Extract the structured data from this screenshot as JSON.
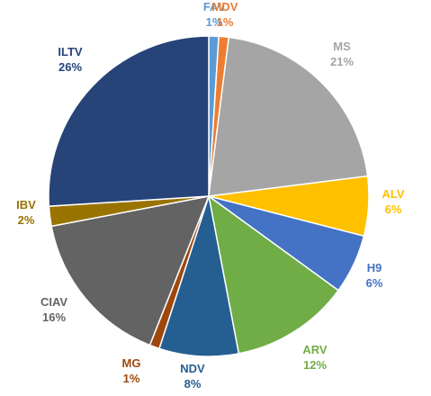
{
  "chart_data": {
    "type": "pie",
    "title": "",
    "slices": [
      {
        "label": "FAV",
        "value": 1,
        "value_label": "1%",
        "color": "#5B9BD5"
      },
      {
        "label": "MDV",
        "value": 1,
        "value_label": "1%",
        "color": "#ED7D31"
      },
      {
        "label": "MS",
        "value": 21,
        "value_label": "21%",
        "color": "#A5A5A5"
      },
      {
        "label": "ALV",
        "value": 6,
        "value_label": "6%",
        "color": "#FFC000"
      },
      {
        "label": "H9",
        "value": 6,
        "value_label": "6%",
        "color": "#4472C4"
      },
      {
        "label": "ARV",
        "value": 12,
        "value_label": "12%",
        "color": "#70AD47"
      },
      {
        "label": "NDV",
        "value": 8,
        "value_label": "8%",
        "color": "#255E91"
      },
      {
        "label": "MG",
        "value": 1,
        "value_label": "1%",
        "color": "#9E480E"
      },
      {
        "label": "CIAV",
        "value": 16,
        "value_label": "16%",
        "color": "#636363"
      },
      {
        "label": "IBV",
        "value": 2,
        "value_label": "2%",
        "color": "#997300"
      },
      {
        "label": "ILTV",
        "value": 26,
        "value_label": "26%",
        "color": "#264478"
      }
    ]
  }
}
